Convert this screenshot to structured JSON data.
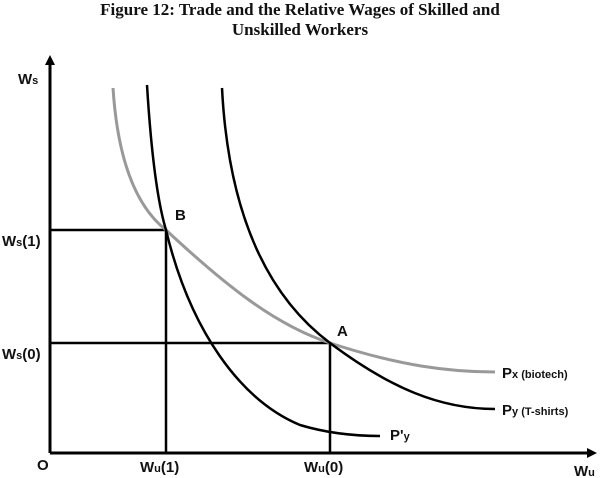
{
  "title": {
    "line1": "Figure 12: Trade and the Relative Wages of Skilled and",
    "line2": "Unskilled Workers"
  },
  "axes": {
    "y": {
      "main": "W",
      "sub": "s"
    },
    "x": {
      "main": "W",
      "sub": "u"
    },
    "origin": "O"
  },
  "ticks": {
    "ws1": {
      "main": "W",
      "sub": "s",
      "rest": "(1)"
    },
    "ws0": {
      "main": "W",
      "sub": "s",
      "rest": "(0)"
    },
    "wu1": {
      "main": "W",
      "sub": "u",
      "rest": "(1)"
    },
    "wu0": {
      "main": "W",
      "sub": "u",
      "rest": "(0)"
    }
  },
  "points": {
    "a": "A",
    "b": "B"
  },
  "curves": {
    "px": {
      "main": "P",
      "sub": "x (biotech)",
      "color": "#999999"
    },
    "py": {
      "main": "P",
      "sub": "y (T-shirts)",
      "color": "#000000"
    },
    "ppy": {
      "main": "P'",
      "sub": "y",
      "color": "#000000"
    }
  }
}
